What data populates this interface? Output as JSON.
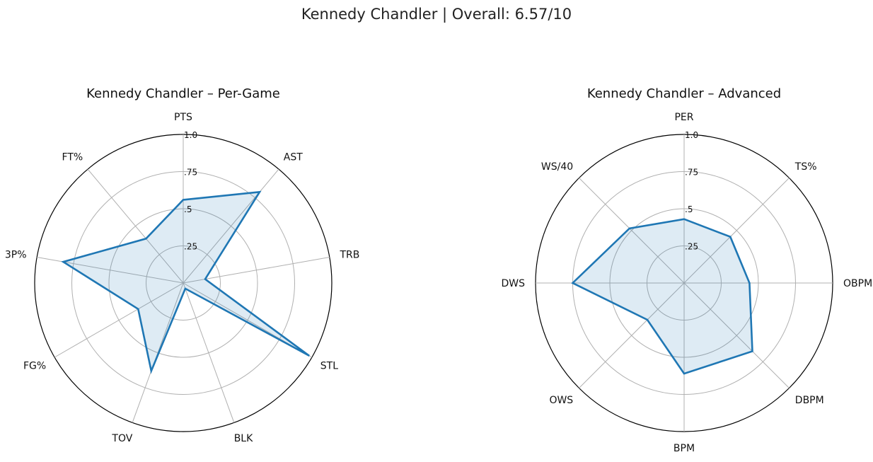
{
  "figure": {
    "suptitle": "Kennedy Chandler | Overall: 6.57/10"
  },
  "colors": {
    "line": "#1f77b4",
    "fill": "#1f77b4",
    "grid": "#b0b0b0",
    "frame": "#000000"
  },
  "chart_data": [
    {
      "type": "radar",
      "title": "Kennedy Chandler – Per-Game",
      "rlim": [
        0,
        1
      ],
      "rticks": [
        0.25,
        0.5,
        0.75,
        1.0
      ],
      "rtick_labels": [
        ".25",
        ".5",
        ".75",
        "1.0"
      ],
      "grid": true,
      "categories": [
        "PTS",
        "AST",
        "TRB",
        "STL",
        "BLK",
        "TOV",
        "FG%",
        "3P%",
        "FT%"
      ],
      "values": [
        0.56,
        0.8,
        0.15,
        0.98,
        0.04,
        0.63,
        0.35,
        0.82,
        0.39
      ]
    },
    {
      "type": "radar",
      "title": "Kennedy Chandler – Advanced",
      "rlim": [
        0,
        1
      ],
      "rticks": [
        0.25,
        0.5,
        0.75,
        1.0
      ],
      "rtick_labels": [
        ".25",
        ".5",
        ".75",
        "1.0"
      ],
      "grid": true,
      "categories": [
        "PER",
        "TS%",
        "OBPM",
        "DBPM",
        "BPM",
        "OWS",
        "DWS",
        "WS/40"
      ],
      "values": [
        0.43,
        0.44,
        0.44,
        0.65,
        0.61,
        0.35,
        0.75,
        0.52
      ]
    }
  ]
}
